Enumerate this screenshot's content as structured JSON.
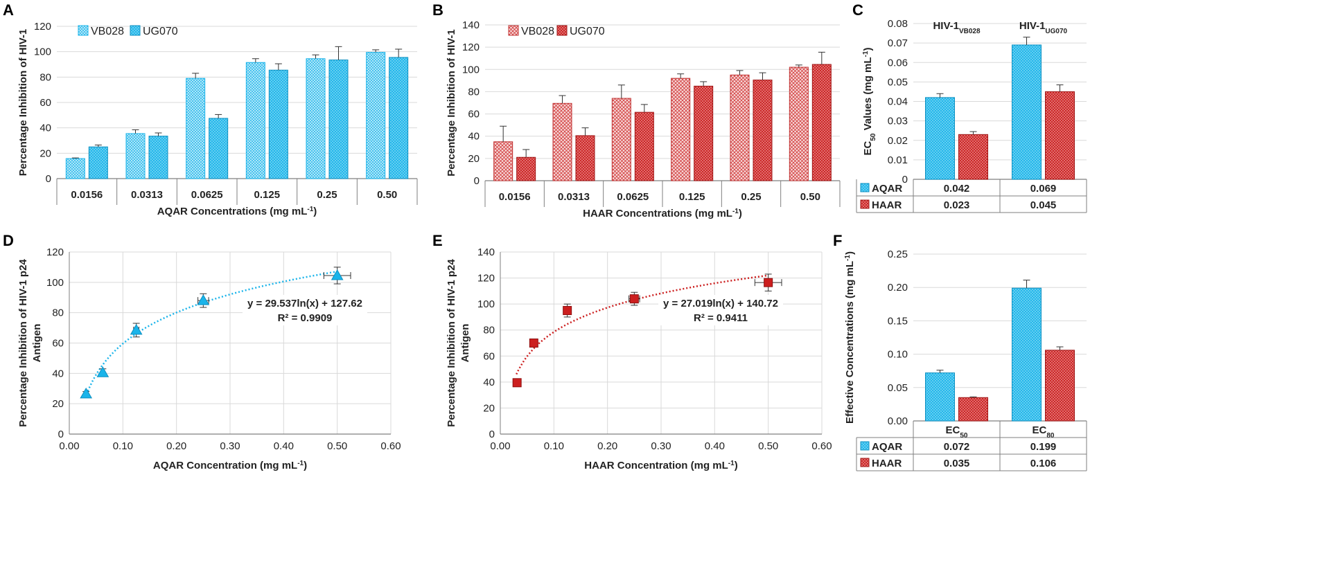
{
  "colors": {
    "cyan": "#1ab4ea",
    "cyan_light": "#c6edfa",
    "red": "#cc1f1f",
    "red_light": "#f2bcbc",
    "grid": "#d9d9d9",
    "axis": "#7f7f7f",
    "text": "#222222"
  },
  "chart_data": [
    {
      "panel": "A",
      "type": "bar",
      "title": "",
      "xlabel": "AQAR Concentrations (mg mL",
      "xlabel_sup": "-1",
      "xlabel_end": ")",
      "ylabel": "Percentage Inhibition of HIV-1",
      "ylim": [
        0,
        120
      ],
      "ytick_step": 20,
      "yticks": [
        "0",
        "20",
        "40",
        "60",
        "80",
        "100",
        "120"
      ],
      "categories": [
        "0.0156",
        "0.0313",
        "0.0625",
        "0.125",
        "0.25",
        "0.50"
      ],
      "series": [
        {
          "name": "VB028",
          "pattern": "light",
          "values": [
            15.8,
            35.5,
            79,
            91.5,
            94.5,
            99.5
          ],
          "errors": [
            0.5,
            3,
            4,
            3,
            3,
            2
          ]
        },
        {
          "name": "UG070",
          "pattern": "dense",
          "values": [
            25,
            33.5,
            47.5,
            85.5,
            93.5,
            95.5
          ],
          "errors": [
            1.5,
            2.5,
            3,
            5,
            10.5,
            6.5
          ]
        }
      ]
    },
    {
      "panel": "B",
      "type": "bar",
      "title": "",
      "xlabel": "HAAR Concentrations (mg mL",
      "xlabel_sup": "-1",
      "xlabel_end": ")",
      "ylabel": "Percentage Inhibition of HIV-1",
      "ylim": [
        0,
        140
      ],
      "ytick_step": 20,
      "yticks": [
        "0",
        "20",
        "40",
        "60",
        "80",
        "100",
        "120",
        "140"
      ],
      "categories": [
        "0.0156",
        "0.0313",
        "0.0625",
        "0.125",
        "0.25",
        "0.50"
      ],
      "series": [
        {
          "name": "VB028",
          "pattern": "light",
          "values": [
            35,
            69.5,
            74,
            92,
            95,
            102
          ],
          "errors": [
            14,
            7,
            12,
            4,
            4,
            2
          ]
        },
        {
          "name": "UG070",
          "pattern": "dense",
          "values": [
            21,
            40.5,
            61.5,
            85,
            90.5,
            104.5
          ],
          "errors": [
            7,
            7,
            7,
            4,
            6.5,
            11
          ]
        }
      ]
    },
    {
      "panel": "C",
      "type": "bar",
      "title": "",
      "ylabel": "EC",
      "ylabel_sub": "50",
      "ylabel_end": " Values (mg mL",
      "ylabel_sup": "-1",
      "ylabel_close": ")",
      "ylim": [
        0,
        0.08
      ],
      "yticks": [
        "0",
        "0.01",
        "0.02",
        "0.03",
        "0.04",
        "0.05",
        "0.06",
        "0.07",
        "0.08"
      ],
      "group_titles": [
        {
          "main": "HIV-1",
          "sub": "VB028"
        },
        {
          "main": "HIV-1",
          "sub": "UG070"
        }
      ],
      "series": [
        {
          "name": "AQAR",
          "pattern": "cyan",
          "values": [
            0.042,
            0.069
          ],
          "errors": [
            0.002,
            0.004
          ],
          "table": [
            "0.042",
            "0.069"
          ]
        },
        {
          "name": "HAAR",
          "pattern": "red",
          "values": [
            0.023,
            0.045
          ],
          "errors": [
            0.0015,
            0.0035
          ],
          "table": [
            "0.023",
            "0.045"
          ]
        }
      ]
    },
    {
      "panel": "D",
      "type": "scatter",
      "title": "",
      "xlabel": "AQAR Concentration (mg mL",
      "xlabel_sup": "-1",
      "xlabel_end": ")",
      "ylabel": "Percentage Inhibition of HIV-1 p24",
      "ylabel2": "Antigen",
      "xlim": [
        0,
        0.6
      ],
      "ylim": [
        0,
        120
      ],
      "xticks": [
        "0.00",
        "0.10",
        "0.20",
        "0.30",
        "0.40",
        "0.50",
        "0.60"
      ],
      "yticks": [
        "0",
        "20",
        "40",
        "60",
        "80",
        "100",
        "120"
      ],
      "marker": "triangle",
      "points": [
        {
          "x": 0.03125,
          "y": 26.5,
          "ey": 1.5,
          "ex": 0.0
        },
        {
          "x": 0.0625,
          "y": 40.5,
          "ey": 2.5,
          "ex": 0.0
        },
        {
          "x": 0.125,
          "y": 68.5,
          "ey": 4.5,
          "ex": 0.005
        },
        {
          "x": 0.25,
          "y": 88,
          "ey": 4.5,
          "ex": 0.01
        },
        {
          "x": 0.5,
          "y": 104.5,
          "ey": 5.5,
          "ex": 0.025
        }
      ],
      "trend": {
        "a": 29.537,
        "b": 127.62,
        "from": 0.03
      },
      "equation": "y = 29.537ln(x) + 127.62",
      "r2": "R² = 0.9909"
    },
    {
      "panel": "E",
      "type": "scatter",
      "title": "",
      "xlabel": "HAAR Concentration (mg mL",
      "xlabel_sup": "-1",
      "xlabel_end": ")",
      "ylabel": "Percentage Inhibition of HIV-1 p24",
      "ylabel2": "Antigen",
      "xlim": [
        0,
        0.6
      ],
      "ylim": [
        0,
        140
      ],
      "xticks": [
        "0.00",
        "0.10",
        "0.20",
        "0.30",
        "0.40",
        "0.50",
        "0.60"
      ],
      "yticks": [
        "0",
        "20",
        "40",
        "60",
        "80",
        "100",
        "120",
        "140"
      ],
      "marker": "square",
      "points": [
        {
          "x": 0.03125,
          "y": 39.5,
          "ey": 0,
          "ex": 0
        },
        {
          "x": 0.0625,
          "y": 70,
          "ey": 0,
          "ex": 0
        },
        {
          "x": 0.125,
          "y": 95,
          "ey": 5,
          "ex": 0.005
        },
        {
          "x": 0.25,
          "y": 104,
          "ey": 5,
          "ex": 0.01
        },
        {
          "x": 0.5,
          "y": 116.5,
          "ey": 6.5,
          "ex": 0.025
        }
      ],
      "trend": {
        "a": 27.019,
        "b": 140.72,
        "from": 0.03
      },
      "equation": "y = 27.019ln(x) + 140.72",
      "r2": "R² = 0.9411"
    },
    {
      "panel": "F",
      "type": "bar",
      "title": "",
      "ylabel": "Effective Concentrations (mg mL",
      "ylabel_sup": "-1",
      "ylabel_close": ")",
      "ylim": [
        0,
        0.25
      ],
      "yticks": [
        "0.00",
        "0.05",
        "0.10",
        "0.15",
        "0.20",
        "0.25"
      ],
      "categories": [
        {
          "main": "EC",
          "sub": "50"
        },
        {
          "main": "EC",
          "sub": "80"
        }
      ],
      "series": [
        {
          "name": "AQAR",
          "pattern": "cyan",
          "values": [
            0.072,
            0.199
          ],
          "errors": [
            0.004,
            0.012
          ],
          "table": [
            "0.072",
            "0.199"
          ]
        },
        {
          "name": "HAAR",
          "pattern": "red",
          "values": [
            0.035,
            0.106
          ],
          "errors": [
            0.001,
            0.005
          ],
          "table": [
            "0.035",
            "0.106"
          ]
        }
      ]
    }
  ]
}
